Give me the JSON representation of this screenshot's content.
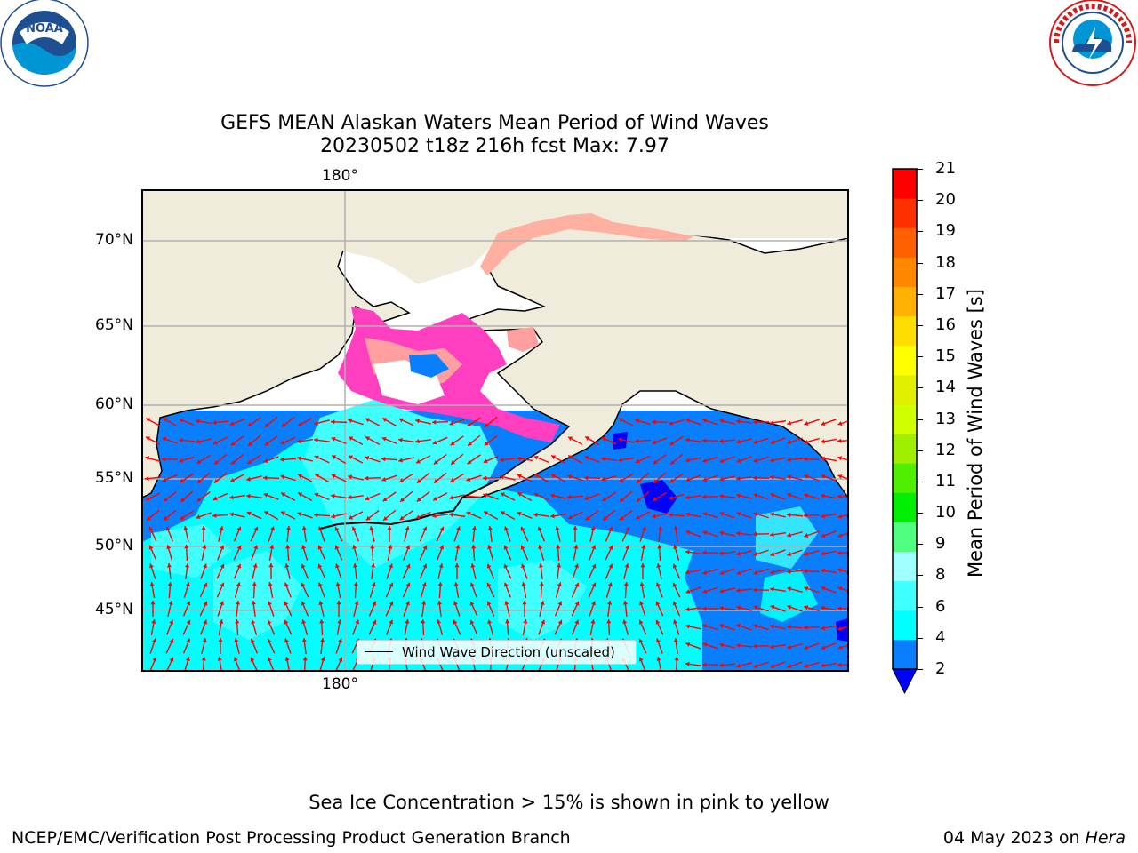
{
  "header": {
    "title_line1": "GEFS MEAN Alaskan Waters Mean Period of Wind Waves",
    "title_line2": "20230502 t18z 216h fcst   Max: 7.97"
  },
  "logos": {
    "left": {
      "name": "noaa-logo",
      "text": "NOAA",
      "ring_text": "NATIONAL OCEANIC AND ATMOSPHERIC ADMINISTRATION · U.S. DEPARTMENT OF COMMERCE"
    },
    "right": {
      "name": "nws-logo",
      "ring_text": "NATIONAL WEATHER SERVICE"
    }
  },
  "map": {
    "lon_top_label": "180°",
    "lon_bottom_label": "180°",
    "lat_labels": [
      "70°N",
      "65°N",
      "60°N",
      "55°N",
      "50°N",
      "45°N"
    ],
    "legend_label": "Wind Wave Direction (unscaled)",
    "colors": {
      "land": "#efecdc",
      "ocean_2_4": "#0a7ffd",
      "ocean_4_6": "#00ffff",
      "ocean_6_8": "#40ffff",
      "ice_low": "#ff3fbf",
      "ice_mid": "#ff9f9f",
      "ice_high": "#ffe000",
      "arrow": "#ff0000",
      "grid": "#b0b0b0",
      "no_data": "#ffffff"
    }
  },
  "colorbar": {
    "label": "Mean Period of Wind Waves [s]",
    "ticks": [
      "21",
      "20",
      "19",
      "18",
      "17",
      "16",
      "15",
      "14",
      "13",
      "12",
      "11",
      "10",
      "9",
      "8",
      "6",
      "4",
      "2"
    ],
    "bands": [
      {
        "from": 2,
        "to": 4,
        "color": "#0a7ffd"
      },
      {
        "from": 4,
        "to": 6,
        "color": "#00ffff"
      },
      {
        "from": 6,
        "to": 8,
        "color": "#40ffff"
      },
      {
        "from": 8,
        "to": 9,
        "color": "#a0ffff"
      },
      {
        "from": 9,
        "to": 10,
        "color": "#50ff80"
      },
      {
        "from": 10,
        "to": 11,
        "color": "#00ee00"
      },
      {
        "from": 11,
        "to": 12,
        "color": "#50ee00"
      },
      {
        "from": 12,
        "to": 13,
        "color": "#a0ee00"
      },
      {
        "from": 13,
        "to": 14,
        "color": "#d0ff00"
      },
      {
        "from": 14,
        "to": 15,
        "color": "#e0f000"
      },
      {
        "from": 15,
        "to": 16,
        "color": "#ffff00"
      },
      {
        "from": 16,
        "to": 17,
        "color": "#ffdd00"
      },
      {
        "from": 17,
        "to": 18,
        "color": "#ffb000"
      },
      {
        "from": 18,
        "to": 19,
        "color": "#ff8800"
      },
      {
        "from": 19,
        "to": 20,
        "color": "#ff6000"
      },
      {
        "from": 20,
        "to": 21,
        "color": "#ff3000"
      },
      {
        "from": 21,
        "to": 22,
        "color": "#ff0000"
      }
    ],
    "under_color": "#0000ff"
  },
  "footer": {
    "ice_note": "Sea Ice Concentration > 15% is shown in pink to yellow",
    "credit": "NCEP/EMC/Verification Post Processing Product Generation Branch",
    "date": "04 May 2023 on",
    "host": "Hera"
  }
}
